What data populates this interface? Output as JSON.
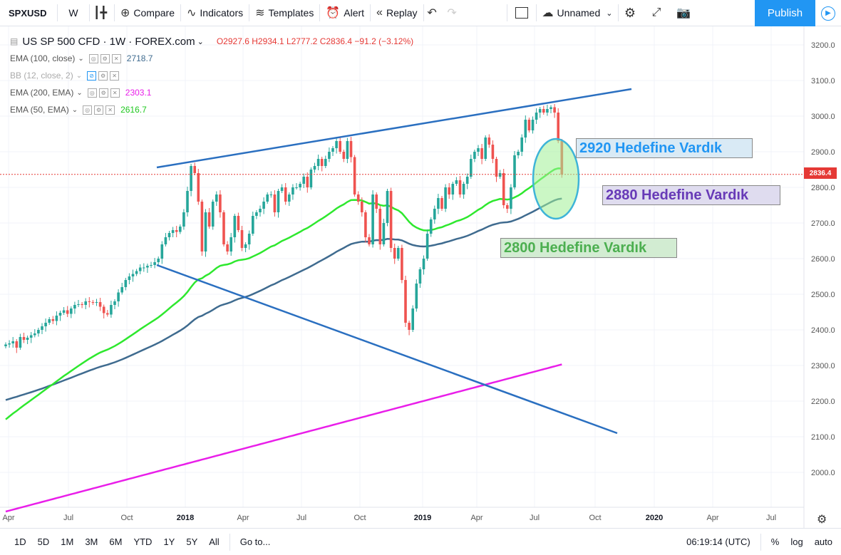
{
  "toolbar": {
    "symbol": "SPXUSD",
    "interval": "W",
    "compare": "Compare",
    "indicators": "Indicators",
    "templates": "Templates",
    "alert": "Alert",
    "replay": "Replay",
    "layout_name": "Unnamed",
    "publish": "Publish"
  },
  "legend": {
    "title": "US SP 500 CFD · 1W · FOREX.com",
    "open": "O2927.6",
    "high": "H2934.1",
    "low": "L2777.2",
    "close": "C2836.4",
    "change": "−91.2 (−3.12%)",
    "indicators": [
      {
        "label": "EMA (100, close)",
        "value": "2718.7",
        "color": "#3f6b8f"
      },
      {
        "label": "BB (12, close, 2)",
        "value": "",
        "color": "#999999"
      },
      {
        "label": "EMA (200, EMA)",
        "value": "2303.1",
        "color": "#e91ee9"
      },
      {
        "label": "EMA (50, EMA)",
        "value": "2616.7",
        "color": "#1ec81e"
      }
    ]
  },
  "annotations": [
    {
      "text": "2920 Hedefine Vardık",
      "color": "#2196f3"
    },
    {
      "text": "2880 Hedefine Vardık",
      "color": "#673ab7"
    },
    {
      "text": "2800 Hedefine Vardık",
      "color": "#4caf50"
    }
  ],
  "price_axis": [
    "3200.0",
    "3100.0",
    "3000.0",
    "2900.0",
    "2800.0",
    "2700.0",
    "2600.0",
    "2500.0",
    "2400.0",
    "2300.0",
    "2200.0",
    "2100.0",
    "2000.0"
  ],
  "current_price": "2836.4",
  "time_axis": [
    "Apr",
    "Jul",
    "Oct",
    "2018",
    "Apr",
    "Jul",
    "Oct",
    "2019",
    "Apr",
    "Jul",
    "Oct",
    "2020",
    "Apr",
    "Jul"
  ],
  "bottom": {
    "ranges": [
      "1D",
      "5D",
      "1M",
      "3M",
      "6M",
      "YTD",
      "1Y",
      "5Y",
      "All"
    ],
    "goto": "Go to...",
    "time": "06:19:14 (UTC)",
    "percent": "%",
    "log": "log",
    "auto": "auto"
  },
  "colors": {
    "up": "#26a69a",
    "down": "#ef5350",
    "accent": "#2196f3"
  },
  "chart_data": {
    "type": "candlestick",
    "symbol": "US SP 500 CFD",
    "interval": "1W",
    "ylim": [
      1900,
      3240
    ],
    "closes": [
      2359,
      2362,
      2368,
      2350,
      2380,
      2372,
      2378,
      2385,
      2390,
      2400,
      2410,
      2420,
      2430,
      2425,
      2440,
      2448,
      2455,
      2445,
      2460,
      2470,
      2472,
      2470,
      2480,
      2478,
      2476,
      2478,
      2465,
      2447,
      2443,
      2470,
      2480,
      2505,
      2520,
      2540,
      2550,
      2557,
      2565,
      2575,
      2575,
      2580,
      2582,
      2590,
      2600,
      2640,
      2660,
      2672,
      2680,
      2675,
      2690,
      2730,
      2790,
      2860,
      2840,
      2760,
      2620,
      2730,
      2690,
      2760,
      2780,
      2730,
      2640,
      2620,
      2660,
      2720,
      2680,
      2630,
      2640,
      2670,
      2720,
      2730,
      2740,
      2760,
      2780,
      2780,
      2730,
      2790,
      2800,
      2760,
      2780,
      2800,
      2800,
      2810,
      2830,
      2800,
      2850,
      2860,
      2880,
      2860,
      2880,
      2900,
      2910,
      2930,
      2900,
      2880,
      2930,
      2885,
      2780,
      2760,
      2730,
      2660,
      2640,
      2780,
      2740,
      2640,
      2700,
      2790,
      2630,
      2600,
      2630,
      2540,
      2420,
      2400,
      2460,
      2530,
      2570,
      2600,
      2670,
      2710,
      2740,
      2770,
      2740,
      2800,
      2780,
      2810,
      2820,
      2780,
      2810,
      2830,
      2880,
      2900,
      2910,
      2880,
      2940,
      2920,
      2880,
      2830,
      2840,
      2750,
      2740,
      2800,
      2890,
      2900,
      2940,
      2990,
      2960,
      2990,
      3010,
      3020,
      3010,
      3020,
      3025,
      3010,
      2930,
      2836
    ]
  }
}
